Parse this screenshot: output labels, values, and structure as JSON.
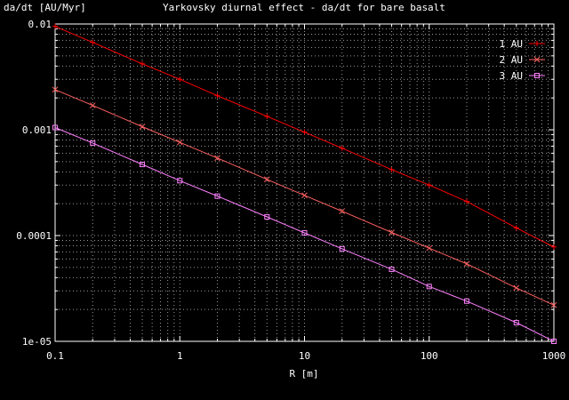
{
  "chart_data": {
    "type": "line",
    "title": "Yarkovsky diurnal effect - da/dt for bare basalt",
    "xlabel": "R [m]",
    "ylabel": "da/dt [AU/Myr]",
    "x_scale": "log",
    "y_scale": "log",
    "xlim": [
      0.1,
      1000
    ],
    "ylim": [
      1e-05,
      0.01
    ],
    "x_ticks": [
      "0.1",
      "1",
      "10",
      "100",
      "1000"
    ],
    "y_ticks": [
      "1e-05",
      "0.0001",
      "0.001",
      "0.01"
    ],
    "grid": true,
    "legend_position": "top-right",
    "x": [
      0.1,
      0.2,
      0.5,
      1,
      2,
      5,
      10,
      20,
      50,
      100,
      200,
      500,
      1000
    ],
    "series": [
      {
        "name": "1 AU",
        "color": "#ff0000",
        "marker": "plus",
        "values": [
          0.0095,
          0.0067,
          0.0042,
          0.003,
          0.0021,
          0.00134,
          0.00095,
          0.00067,
          0.00042,
          0.0003,
          0.00021,
          0.000118,
          7.8e-05
        ]
      },
      {
        "name": "2 AU",
        "color": "#ff6060",
        "marker": "x",
        "values": [
          0.0024,
          0.0017,
          0.00107,
          0.00076,
          0.00054,
          0.00034,
          0.00024,
          0.00017,
          0.000107,
          7.6e-05,
          5.4e-05,
          3.2e-05,
          2.2e-05
        ]
      },
      {
        "name": "3 AU",
        "color": "#ff80ff",
        "marker": "square",
        "values": [
          0.00105,
          0.00075,
          0.00047,
          0.00033,
          0.000236,
          0.00015,
          0.000106,
          7.5e-05,
          4.8e-05,
          3.3e-05,
          2.4e-05,
          1.5e-05,
          1e-05
        ]
      }
    ]
  }
}
